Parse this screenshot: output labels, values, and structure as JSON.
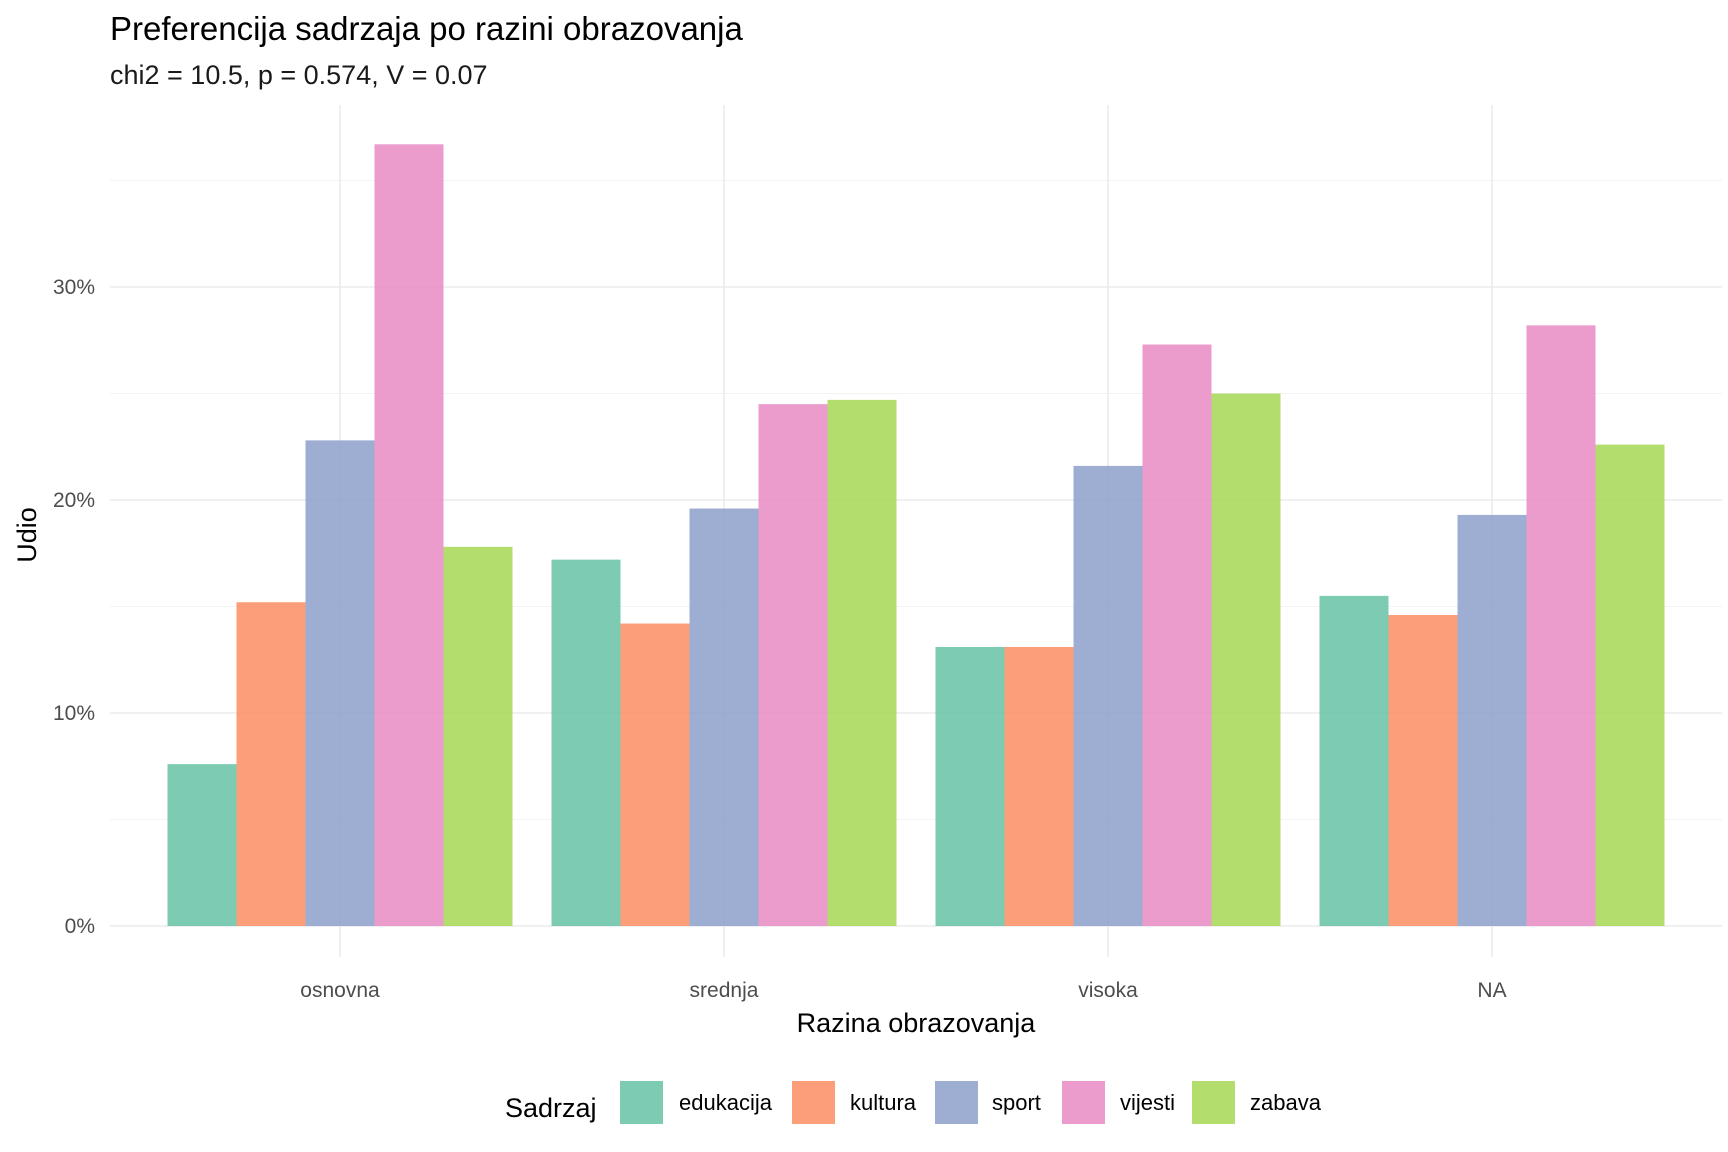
{
  "chart_data": {
    "type": "bar",
    "title": "Preferencija sadrzaja po razini obrazovanja",
    "subtitle": "chi2 = 10.5, p = 0.574, V = 0.07",
    "xlabel": "Razina obrazovanja",
    "ylabel": "Udio",
    "categories": [
      "osnovna",
      "srednja",
      "visoka",
      "NA"
    ],
    "ylim": [
      0,
      0.38
    ],
    "yticks": [
      0,
      0.1,
      0.2,
      0.3
    ],
    "ytick_labels": [
      "0%",
      "10%",
      "20%",
      "30%"
    ],
    "grid": true,
    "legend_title": "Sadrzaj",
    "legend_position": "bottom",
    "series": [
      {
        "name": "edukacija",
        "color": "#66c2a5",
        "values": [
          0.076,
          0.172,
          0.131,
          0.155
        ]
      },
      {
        "name": "kultura",
        "color": "#fc8d62",
        "values": [
          0.152,
          0.142,
          0.131,
          0.146
        ]
      },
      {
        "name": "sport",
        "color": "#8da0cb",
        "values": [
          0.228,
          0.196,
          0.216,
          0.193
        ]
      },
      {
        "name": "vijesti",
        "color": "#e78ac3",
        "values": [
          0.367,
          0.245,
          0.273,
          0.282
        ]
      },
      {
        "name": "zabava",
        "color": "#a6d854",
        "values": [
          0.178,
          0.247,
          0.25,
          0.226
        ]
      }
    ]
  }
}
